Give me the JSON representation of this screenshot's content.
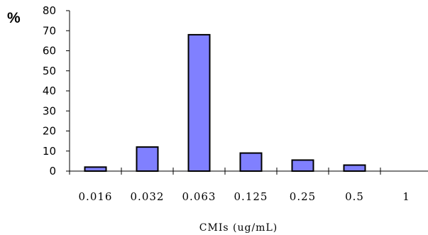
{
  "chart_data": {
    "type": "bar",
    "categories": [
      "0.016",
      "0.032",
      "0.063",
      "0.125",
      "0.25",
      "0.5",
      "1"
    ],
    "values": [
      2,
      12,
      68,
      9,
      5.5,
      3,
      0
    ],
    "title": "",
    "xlabel": "CMIs (ug/mL)",
    "ylabel": "%",
    "ylim": [
      0,
      80
    ],
    "yticks": [
      0,
      10,
      20,
      30,
      40,
      50,
      60,
      70,
      80
    ],
    "grid": false,
    "bar_color": "#8080ff",
    "bar_edge_color": "#000000"
  }
}
